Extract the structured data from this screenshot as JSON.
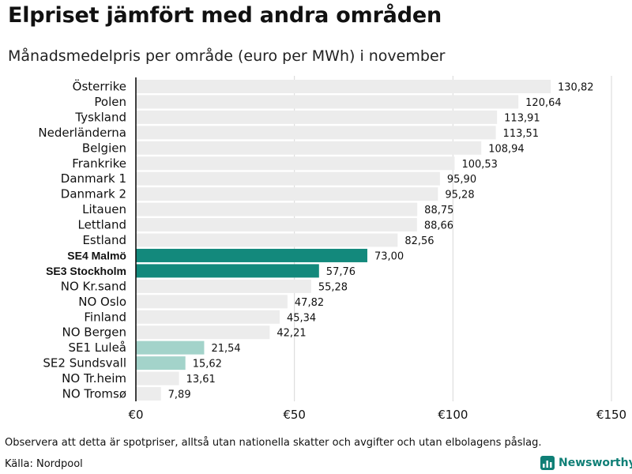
{
  "title": "Elpriset jämfört med andra områden",
  "subtitle": "Månadsmedelpris per område (euro per MWh) i november",
  "note": "Observera att detta är spotpriser, alltså utan nationella skatter och avgifter och utan elbolagens påslag.",
  "source": "Källa: Nordpool",
  "brand": {
    "name": "Newsworthy",
    "icon": "newsworthy-logo-icon"
  },
  "colors": {
    "default_bar": "#ececec",
    "highlight_bar": "#13897c",
    "light_bar": "#a3d3ca",
    "grid": "#d7d7d7",
    "axis": "#111111"
  },
  "chart_data": {
    "type": "bar",
    "orientation": "horizontal",
    "title": "Elpriset jämfört med andra områden",
    "subtitle": "Månadsmedelpris per område (euro per MWh) i november",
    "xlabel": "",
    "ylabel": "",
    "xlim": [
      0,
      150
    ],
    "xticks": [
      0,
      50,
      100,
      150
    ],
    "xtick_labels": [
      "€0",
      "€50",
      "€100",
      "€150"
    ],
    "grid": true,
    "categories": [
      "Österrike",
      "Polen",
      "Tyskland",
      "Nederländerna",
      "Belgien",
      "Frankrike",
      "Danmark  1",
      "Danmark  2",
      "Litauen",
      "Lettland",
      "Estland",
      "SE4 Malmö",
      "SE3 Stockholm",
      "NO Kr.sand",
      "NO Oslo",
      "Finland",
      "NO Bergen",
      "SE1  Luleå",
      "SE2  Sundsvall",
      "NO Tr.heim",
      "NO Tromsø"
    ],
    "values": [
      130.82,
      120.64,
      113.91,
      113.51,
      108.94,
      100.53,
      95.9,
      95.28,
      88.75,
      88.66,
      82.56,
      73.0,
      57.76,
      55.28,
      47.82,
      45.34,
      42.21,
      21.54,
      15.62,
      13.61,
      7.89
    ],
    "value_labels": [
      "130,82",
      "120,64",
      "113,91",
      "113,51",
      "108,94",
      "100,53",
      "95,90",
      "95,28",
      "88,75",
      "88,66",
      "82,56",
      "73,00",
      "57,76",
      "55,28",
      "47,82",
      "45,34",
      "42,21",
      "21,54",
      "15,62",
      "13,61",
      "7,89"
    ],
    "bar_style": [
      "default",
      "default",
      "default",
      "default",
      "default",
      "default",
      "default",
      "default",
      "default",
      "default",
      "default",
      "highlight",
      "highlight",
      "default",
      "default",
      "default",
      "default",
      "light",
      "light",
      "default",
      "default"
    ],
    "bold_labels": [
      "SE4 Malmö",
      "SE3 Stockholm"
    ]
  }
}
